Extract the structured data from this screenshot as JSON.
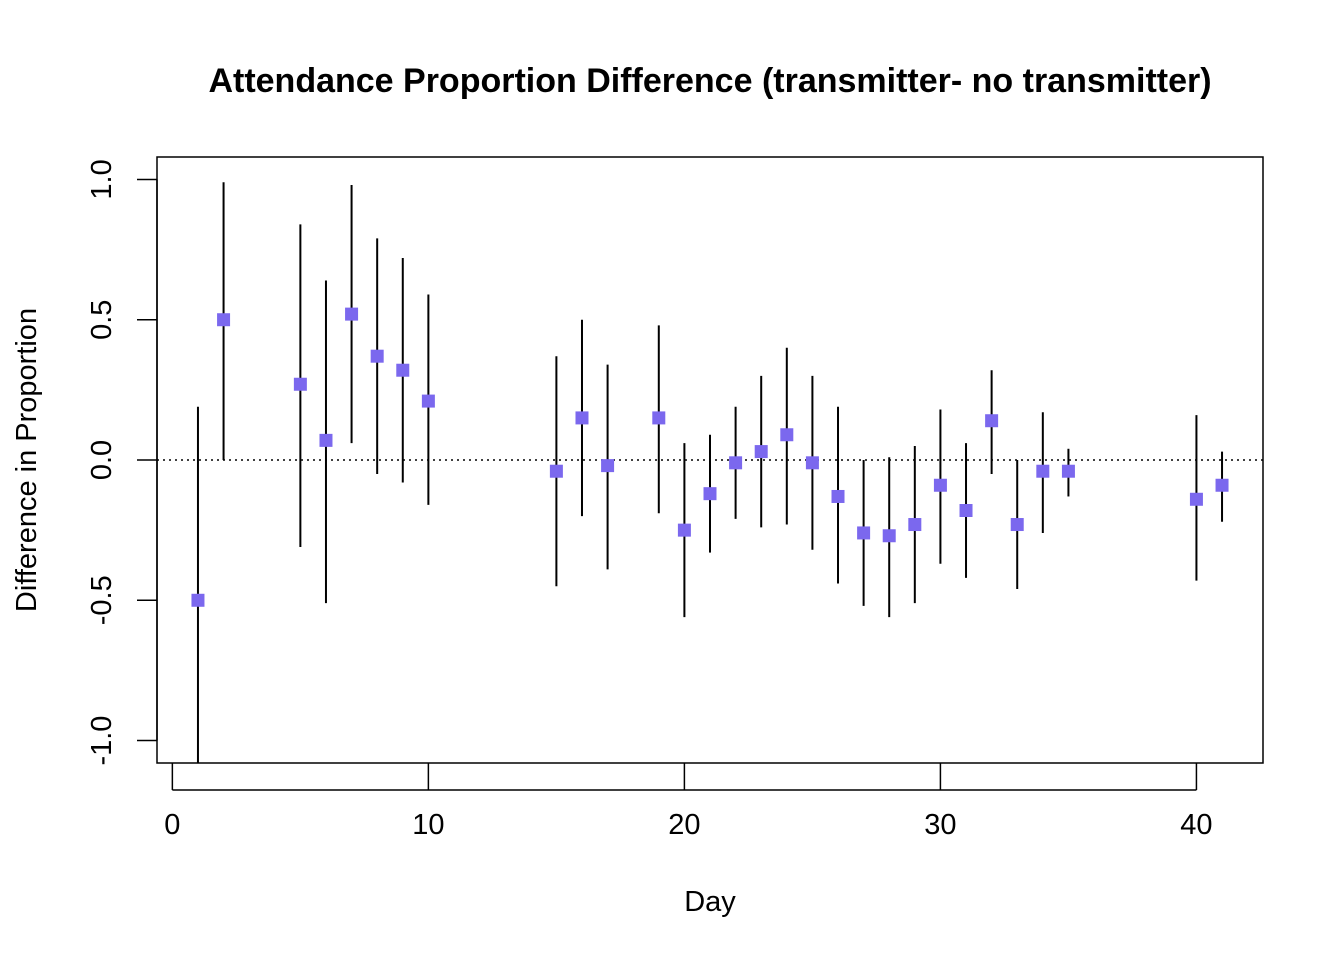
{
  "chart_data": {
    "type": "scatter",
    "title": "Attendance Proportion Difference (transmitter- no transmitter)",
    "xlabel": "Day",
    "ylabel": "Difference in Proportion",
    "xlim": [
      -0.6,
      42.6
    ],
    "ylim": [
      -1.08,
      1.08
    ],
    "x_ticks": [
      0,
      10,
      20,
      30,
      40
    ],
    "x_tick_labels": [
      "0",
      "10",
      "20",
      "30",
      "40"
    ],
    "y_ticks": [
      -1.0,
      -0.5,
      0.0,
      0.5,
      1.0
    ],
    "y_tick_labels": [
      "-1.0",
      "-0.5",
      "0.0",
      "0.5",
      "1.0"
    ],
    "reference_line_y": 0,
    "grid": false,
    "marker_color": "#7b68ee",
    "points": [
      {
        "x": 1,
        "y": -0.5,
        "lo": -1.09,
        "hi": 0.19
      },
      {
        "x": 2,
        "y": 0.5,
        "lo": 0.0,
        "hi": 0.99
      },
      {
        "x": 5,
        "y": 0.27,
        "lo": -0.31,
        "hi": 0.84
      },
      {
        "x": 6,
        "y": 0.07,
        "lo": -0.51,
        "hi": 0.64
      },
      {
        "x": 7,
        "y": 0.52,
        "lo": 0.06,
        "hi": 0.98
      },
      {
        "x": 8,
        "y": 0.37,
        "lo": -0.05,
        "hi": 0.79
      },
      {
        "x": 9,
        "y": 0.32,
        "lo": -0.08,
        "hi": 0.72
      },
      {
        "x": 10,
        "y": 0.21,
        "lo": -0.16,
        "hi": 0.59
      },
      {
        "x": 15,
        "y": -0.04,
        "lo": -0.45,
        "hi": 0.37
      },
      {
        "x": 16,
        "y": 0.15,
        "lo": -0.2,
        "hi": 0.5
      },
      {
        "x": 17,
        "y": -0.02,
        "lo": -0.39,
        "hi": 0.34
      },
      {
        "x": 19,
        "y": 0.15,
        "lo": -0.19,
        "hi": 0.48
      },
      {
        "x": 20,
        "y": -0.25,
        "lo": -0.56,
        "hi": 0.06
      },
      {
        "x": 21,
        "y": -0.12,
        "lo": -0.33,
        "hi": 0.09
      },
      {
        "x": 22,
        "y": -0.01,
        "lo": -0.21,
        "hi": 0.19
      },
      {
        "x": 23,
        "y": 0.03,
        "lo": -0.24,
        "hi": 0.3
      },
      {
        "x": 24,
        "y": 0.09,
        "lo": -0.23,
        "hi": 0.4
      },
      {
        "x": 25,
        "y": -0.01,
        "lo": -0.32,
        "hi": 0.3
      },
      {
        "x": 26,
        "y": -0.13,
        "lo": -0.44,
        "hi": 0.19
      },
      {
        "x": 27,
        "y": -0.26,
        "lo": -0.52,
        "hi": 0.0
      },
      {
        "x": 28,
        "y": -0.27,
        "lo": -0.56,
        "hi": 0.01
      },
      {
        "x": 29,
        "y": -0.23,
        "lo": -0.51,
        "hi": 0.05
      },
      {
        "x": 30,
        "y": -0.09,
        "lo": -0.37,
        "hi": 0.18
      },
      {
        "x": 31,
        "y": -0.18,
        "lo": -0.42,
        "hi": 0.06
      },
      {
        "x": 32,
        "y": 0.14,
        "lo": -0.05,
        "hi": 0.32
      },
      {
        "x": 33,
        "y": -0.23,
        "lo": -0.46,
        "hi": 0.0
      },
      {
        "x": 34,
        "y": -0.04,
        "lo": -0.26,
        "hi": 0.17
      },
      {
        "x": 35,
        "y": -0.04,
        "lo": -0.13,
        "hi": 0.04
      },
      {
        "x": 40,
        "y": -0.14,
        "lo": -0.43,
        "hi": 0.16
      },
      {
        "x": 41,
        "y": -0.09,
        "lo": -0.22,
        "hi": 0.03
      }
    ]
  }
}
